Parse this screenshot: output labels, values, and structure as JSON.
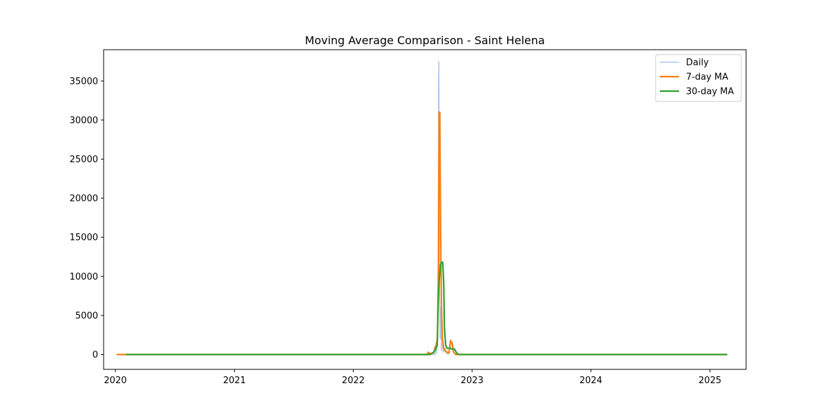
{
  "chart_data": {
    "type": "line",
    "title": "Moving Average Comparison - Saint Helena",
    "xlabel": "",
    "ylabel": "",
    "x_ticks": [
      "2020",
      "2021",
      "2022",
      "2023",
      "2024",
      "2025"
    ],
    "y_ticks": [
      "0",
      "5000",
      "10000",
      "15000",
      "20000",
      "25000",
      "30000",
      "35000"
    ],
    "xlim": [
      "2019-11-26",
      "2025-04-22"
    ],
    "ylim": [
      -1900,
      39000
    ],
    "grid": false,
    "legend_position": "top-right",
    "series": [
      {
        "name": "Daily",
        "color": "#aec7e8",
        "points": [
          [
            "2020-01-05",
            0
          ],
          [
            "2022-08-15",
            0
          ],
          [
            "2022-08-20",
            200
          ],
          [
            "2022-08-23",
            0
          ],
          [
            "2022-09-10",
            0
          ],
          [
            "2022-09-12",
            1500
          ],
          [
            "2022-09-14",
            200
          ],
          [
            "2022-09-17",
            1800
          ],
          [
            "2022-09-19",
            12500
          ],
          [
            "2022-09-20",
            34500
          ],
          [
            "2022-09-21",
            37500
          ],
          [
            "2022-09-22",
            25000
          ],
          [
            "2022-09-23",
            8000
          ],
          [
            "2022-09-25",
            2000
          ],
          [
            "2022-09-27",
            6000
          ],
          [
            "2022-09-29",
            500
          ],
          [
            "2022-10-02",
            1500
          ],
          [
            "2022-10-05",
            300
          ],
          [
            "2022-10-10",
            800
          ],
          [
            "2022-10-15",
            100
          ],
          [
            "2022-10-22",
            100
          ],
          [
            "2022-10-28",
            1500
          ],
          [
            "2022-11-02",
            1500
          ],
          [
            "2022-11-06",
            300
          ],
          [
            "2022-11-10",
            0
          ],
          [
            "2022-11-20",
            0
          ],
          [
            "2025-02-23",
            0
          ]
        ]
      },
      {
        "name": "7-day MA",
        "color": "#ff7f0e",
        "points": [
          [
            "2020-01-05",
            0
          ],
          [
            "2022-08-15",
            0
          ],
          [
            "2022-08-20",
            300
          ],
          [
            "2022-08-24",
            100
          ],
          [
            "2022-09-05",
            200
          ],
          [
            "2022-09-10",
            1000
          ],
          [
            "2022-09-14",
            1200
          ],
          [
            "2022-09-17",
            2500
          ],
          [
            "2022-09-20",
            12500
          ],
          [
            "2022-09-22",
            31000
          ],
          [
            "2022-09-24",
            31000
          ],
          [
            "2022-09-26",
            18000
          ],
          [
            "2022-09-29",
            6000
          ],
          [
            "2022-10-02",
            2000
          ],
          [
            "2022-10-06",
            800
          ],
          [
            "2022-10-10",
            500
          ],
          [
            "2022-10-15",
            300
          ],
          [
            "2022-10-22",
            200
          ],
          [
            "2022-10-27",
            1800
          ],
          [
            "2022-10-31",
            1500
          ],
          [
            "2022-11-05",
            300
          ],
          [
            "2022-11-12",
            0
          ],
          [
            "2025-02-23",
            0
          ]
        ]
      },
      {
        "name": "30-day MA",
        "color": "#2ca02c",
        "points": [
          [
            "2020-02-02",
            0
          ],
          [
            "2022-08-25",
            0
          ],
          [
            "2022-09-05",
            300
          ],
          [
            "2022-09-12",
            800
          ],
          [
            "2022-09-16",
            1200
          ],
          [
            "2022-09-19",
            7000
          ],
          [
            "2022-09-22",
            9500
          ],
          [
            "2022-09-26",
            11500
          ],
          [
            "2022-09-29",
            11800
          ],
          [
            "2022-10-03",
            11800
          ],
          [
            "2022-10-06",
            9000
          ],
          [
            "2022-10-08",
            3500
          ],
          [
            "2022-10-12",
            1200
          ],
          [
            "2022-10-16",
            800
          ],
          [
            "2022-10-25",
            800
          ],
          [
            "2022-11-02",
            700
          ],
          [
            "2022-11-08",
            700
          ],
          [
            "2022-11-16",
            100
          ],
          [
            "2022-11-25",
            0
          ],
          [
            "2025-02-23",
            0
          ]
        ]
      }
    ]
  }
}
